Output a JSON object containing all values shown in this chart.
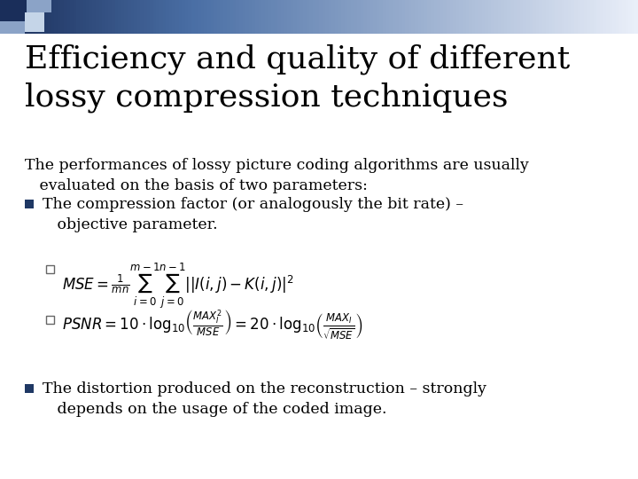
{
  "title_line1": "Efficiency and quality of different",
  "title_line2": "lossy compression techniques",
  "title_fontsize": 26,
  "title_color": "#000000",
  "body_fontsize": 12.5,
  "body_color": "#000000",
  "bg_color": "#ffffff",
  "intro_text1": "The performances of lossy picture coding algorithms are usually",
  "intro_text2": "   evaluated on the basis of two parameters:",
  "bullet1_line1": "The compression factor (or analogously the bit rate) –",
  "bullet1_line2": "   objective parameter.",
  "bullet2_line1": "The distortion produced on the reconstruction – strongly",
  "bullet2_line2": "   depends on the usage of the coded image.",
  "square_bullet_color": "#1f3864",
  "sub_bullet_color": "#666666",
  "header_dark": "#1a2e5a",
  "header_mid": "#4a6fa5",
  "header_light": "#b0c4de"
}
